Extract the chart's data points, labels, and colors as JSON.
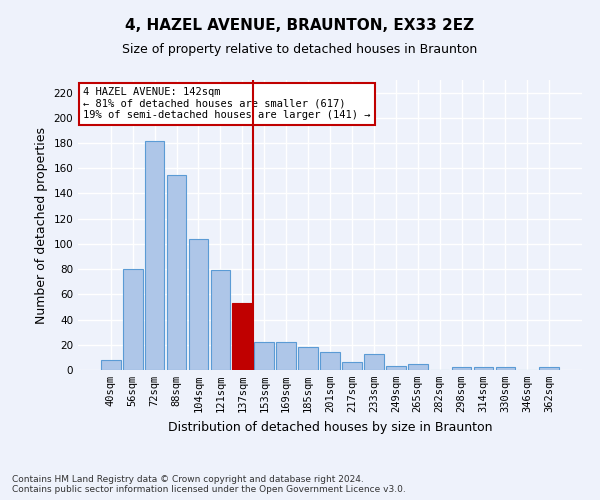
{
  "title": "4, HAZEL AVENUE, BRAUNTON, EX33 2EZ",
  "subtitle": "Size of property relative to detached houses in Braunton",
  "xlabel": "Distribution of detached houses by size in Braunton",
  "ylabel": "Number of detached properties",
  "categories": [
    "40sqm",
    "56sqm",
    "72sqm",
    "88sqm",
    "104sqm",
    "121sqm",
    "137sqm",
    "153sqm",
    "169sqm",
    "185sqm",
    "201sqm",
    "217sqm",
    "233sqm",
    "249sqm",
    "265sqm",
    "282sqm",
    "298sqm",
    "314sqm",
    "330sqm",
    "346sqm",
    "362sqm"
  ],
  "values": [
    8,
    80,
    182,
    155,
    104,
    79,
    53,
    22,
    22,
    18,
    14,
    6,
    13,
    3,
    5,
    0,
    2,
    2,
    2,
    0,
    2
  ],
  "bar_color": "#aec6e8",
  "bar_edge_color": "#5b9bd5",
  "highlight_bar_index": 6,
  "highlight_color": "#c00000",
  "vline_x": 6.5,
  "annotation_title": "4 HAZEL AVENUE: 142sqm",
  "annotation_line1": "← 81% of detached houses are smaller (617)",
  "annotation_line2": "19% of semi-detached houses are larger (141) →",
  "annotation_box_color": "#ffffff",
  "annotation_border_color": "#c00000",
  "footer_line1": "Contains HM Land Registry data © Crown copyright and database right 2024.",
  "footer_line2": "Contains public sector information licensed under the Open Government Licence v3.0.",
  "ylim": [
    0,
    230
  ],
  "yticks": [
    0,
    20,
    40,
    60,
    80,
    100,
    120,
    140,
    160,
    180,
    200,
    220
  ],
  "bg_color": "#eef2fb",
  "grid_color": "#ffffff",
  "title_fontsize": 11,
  "subtitle_fontsize": 9,
  "axis_label_fontsize": 9,
  "tick_fontsize": 7.5,
  "footer_fontsize": 6.5,
  "annotation_fontsize": 7.5
}
